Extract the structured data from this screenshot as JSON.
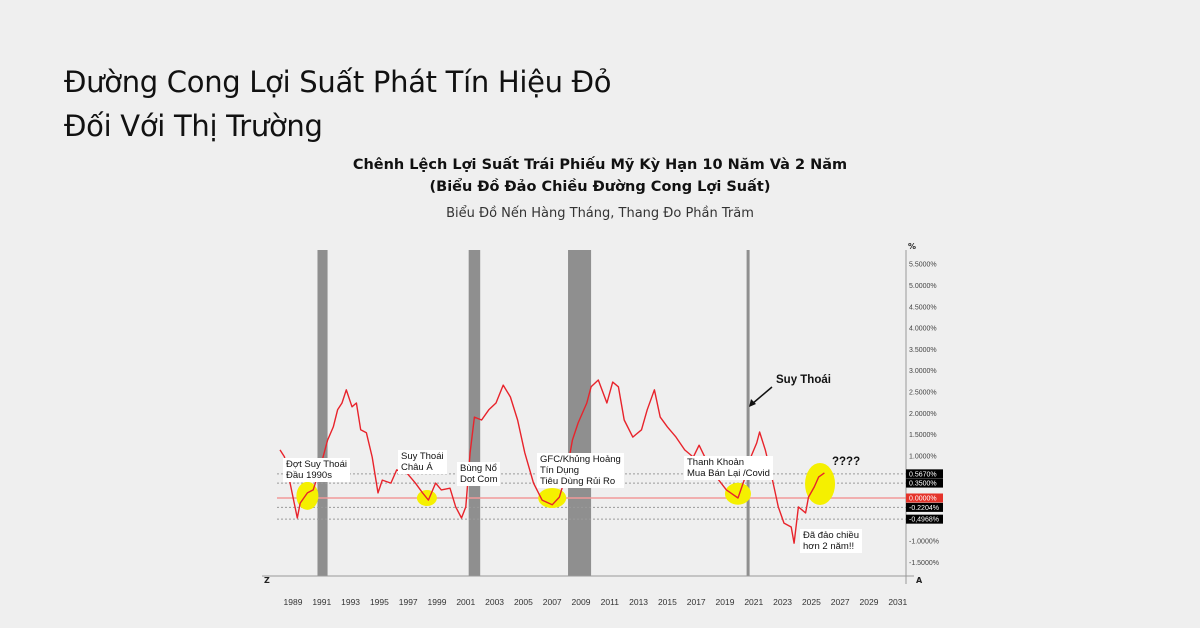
{
  "headline": {
    "line1": "Đường Cong Lợi Suất Phát Tín Hiệu Đỏ",
    "line2": "Đối Với Thị Trường"
  },
  "chart_data": {
    "type": "line",
    "title": "Chênh Lệch Lợi Suất Trái Phiếu Mỹ Kỳ Hạn 10 Năm Và 2 Năm",
    "title2": "(Biểu Đồ Đảo Chiều Đường Cong Lợi Suất)",
    "subtitle": "Biểu Đồ Nến Hàng Tháng, Thang Đo Phần Trăm",
    "ylabel": "%",
    "xlim": [
      1987.8,
      2032.5
    ],
    "ylim": [
      -1.9,
      5.8
    ],
    "x_ticks": [
      "1989",
      "1991",
      "1993",
      "1995",
      "1997",
      "1999",
      "2001",
      "2003",
      "2005",
      "2007",
      "2009",
      "2011",
      "2013",
      "2015",
      "2017",
      "2019",
      "2021",
      "2023",
      "2025",
      "2027",
      "2029",
      "2031"
    ],
    "y_ticks": [
      {
        "v": 5.5,
        "label": "5.5000%"
      },
      {
        "v": 5.0,
        "label": "5.0000%"
      },
      {
        "v": 4.5,
        "label": "4.5000%"
      },
      {
        "v": 4.0,
        "label": "4.0000%"
      },
      {
        "v": 3.5,
        "label": "3.5000%"
      },
      {
        "v": 3.0,
        "label": "3.0000%"
      },
      {
        "v": 2.5,
        "label": "2.5000%"
      },
      {
        "v": 2.0,
        "label": "2.0000%"
      },
      {
        "v": 1.5,
        "label": "1.5000%"
      },
      {
        "v": 1.0,
        "label": "1.0000%"
      },
      {
        "v": -1.0,
        "label": "-1.0000%"
      },
      {
        "v": -1.5,
        "label": "-1.5000%"
      }
    ],
    "axis_corner_left": "Z",
    "axis_corner_right": "A",
    "reference_levels": [
      {
        "v": 0.567,
        "label": "0.5670%",
        "color": "#000000",
        "line": "dotted"
      },
      {
        "v": 0.35,
        "label": "0.3500%",
        "color": "#000000",
        "line": "dotted"
      },
      {
        "v": 0.0,
        "label": "0.0000%",
        "color": "#e5332a",
        "line": "solid"
      },
      {
        "v": -0.2204,
        "label": "-0.2204%",
        "color": "#000000",
        "line": "dotted"
      },
      {
        "v": -0.4968,
        "label": "-0,4968%",
        "color": "#000000",
        "line": "dotted"
      }
    ],
    "recessions": [
      [
        1990.7,
        1991.4
      ],
      [
        2001.2,
        2002.0
      ],
      [
        2008.1,
        2009.7
      ],
      [
        2020.5,
        2020.6
      ]
    ],
    "series": [
      {
        "color": "#e8232b",
        "x": [
          1988.1,
          1988.4,
          1988.8,
          1989.3,
          1989.5,
          1990.0,
          1990.4,
          1990.9,
          1991.4,
          1991.8,
          1992.1,
          1992.4,
          1992.7,
          1993.1,
          1993.4,
          1993.7,
          1994.1,
          1994.5,
          1994.9,
          1995.2,
          1995.8,
          1996.2,
          1996.9,
          1997.5,
          1998.0,
          1998.4,
          1998.9,
          1999.3,
          1999.9,
          2000.3,
          2000.7,
          2001.0,
          2001.3,
          2001.6,
          2002.1,
          2002.6,
          2003.1,
          2003.6,
          2004.1,
          2004.6,
          2005.1,
          2005.7,
          2006.3,
          2007.0,
          2007.5,
          2008.0,
          2008.4,
          2008.8,
          2009.4,
          2009.7,
          2010.2,
          2010.8,
          2011.2,
          2011.6,
          2012.0,
          2012.6,
          2013.2,
          2013.6,
          2014.1,
          2014.5,
          2015.0,
          2015.6,
          2016.2,
          2016.8,
          2017.2,
          2017.7,
          2018.4,
          2019.1,
          2019.9,
          2020.4,
          2020.7,
          2021.2,
          2021.4,
          2021.8,
          2022.3,
          2022.7,
          2023.1,
          2023.6,
          2023.8,
          2024.1,
          2024.6,
          2024.8,
          2025.2,
          2025.5,
          2025.9
        ],
        "y": [
          1.13,
          0.97,
          0.35,
          -0.47,
          -0.12,
          0.12,
          0.19,
          0.73,
          1.36,
          1.67,
          2.07,
          2.23,
          2.54,
          2.14,
          2.23,
          1.6,
          1.53,
          0.96,
          0.12,
          0.42,
          0.35,
          0.66,
          0.59,
          0.35,
          0.12,
          -0.05,
          0.35,
          0.19,
          0.23,
          -0.21,
          -0.47,
          -0.21,
          1.06,
          1.9,
          1.83,
          2.07,
          2.23,
          2.65,
          2.37,
          1.83,
          1.06,
          0.35,
          -0.05,
          -0.16,
          0.02,
          0.59,
          1.36,
          1.76,
          2.23,
          2.61,
          2.77,
          2.23,
          2.72,
          2.61,
          1.83,
          1.43,
          1.6,
          2.07,
          2.54,
          1.9,
          1.67,
          1.43,
          1.13,
          0.96,
          1.24,
          0.89,
          0.49,
          0.19,
          0.0,
          0.49,
          0.89,
          1.29,
          1.55,
          1.13,
          0.42,
          -0.21,
          -0.59,
          -0.68,
          -1.06,
          -0.21,
          -0.35,
          0.02,
          0.26,
          0.49,
          0.59
        ]
      }
    ],
    "highlights": [
      {
        "x": 1990.0,
        "y": 0.05
      },
      {
        "x": 1998.3,
        "y": 0.0
      },
      {
        "x": 2007.0,
        "y": 0.0
      },
      {
        "x": 2019.9,
        "y": 0.1
      },
      {
        "x": 2025.6,
        "y": 0.33
      }
    ],
    "highlight_color": "#f5f000",
    "annotations": {
      "early90s": "Đợt Suy Thoái\nĐầu 1990s",
      "asia": "Suy Thoái\nChâu Á",
      "dotcom": "Bùng Nổ\nDot Com",
      "gfc": "GFC/Khủng Hoảng\nTín Dụng\nTiêu Dùng Rủi Ro",
      "covid": "Thanh Khoản\nMua Bán Lại /Covid",
      "recession": "Suy Thoái",
      "inverted": "Đã đảo chiều\nhơn 2 năm!!",
      "question": "????"
    }
  }
}
